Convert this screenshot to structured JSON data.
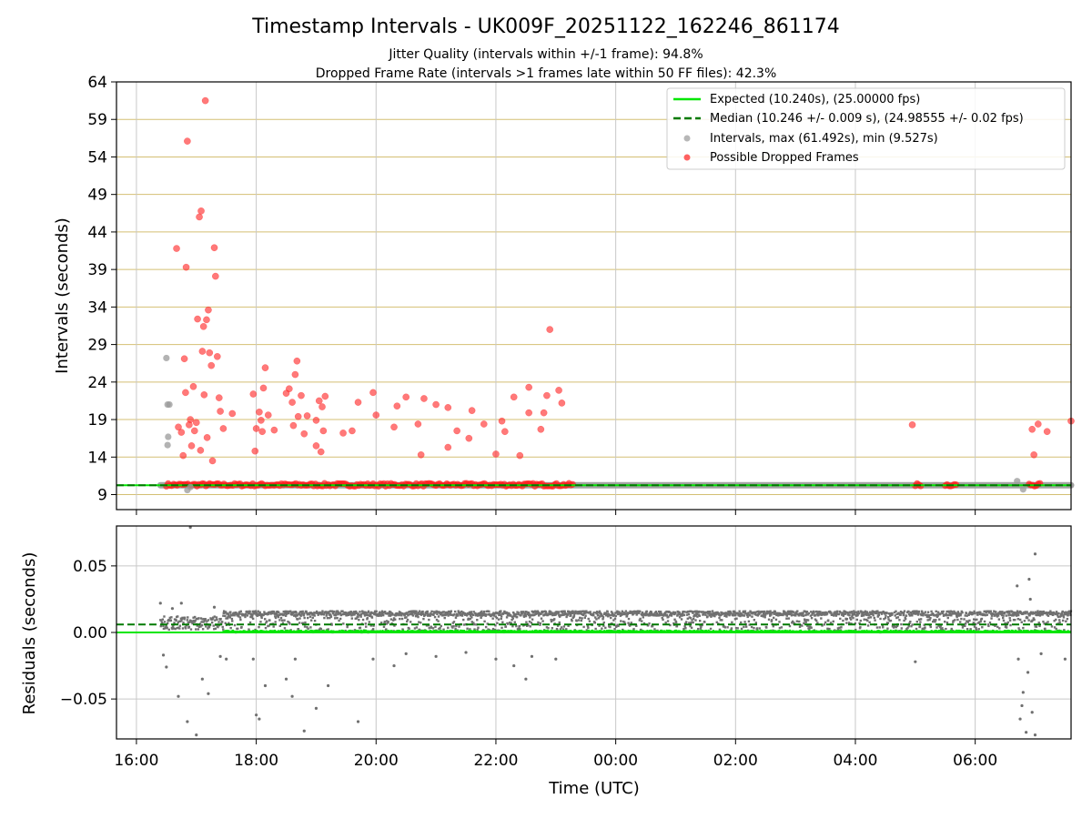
{
  "title": "Timestamp Intervals - UK009F_20251122_162246_861174",
  "subtitle1": "Jitter Quality (intervals within +/-1 frame): 94.8%",
  "subtitle2": "Dropped Frame Rate (intervals >1 frames late within 50 FF files): 42.3%",
  "colors": {
    "expected": "#00e600",
    "median": "#007a00",
    "intervals": "#999999",
    "dropped": "#ff2020",
    "residuals": "#707070",
    "hgrid_top": "#d4bf73",
    "grid": "#c8c8c8"
  },
  "chart_data": [
    {
      "type": "scatter",
      "ylabel": "Intervals (seconds)",
      "ylim": [
        7,
        64
      ],
      "yticks": [
        9,
        14,
        19,
        24,
        29,
        34,
        39,
        44,
        49,
        54,
        59,
        64
      ],
      "ytick_labels": [
        "9",
        "14",
        "19",
        "24",
        "29",
        "34",
        "39",
        "44",
        "49",
        "54",
        "59",
        "64"
      ],
      "grid": true,
      "legend_position": "top-right",
      "legend": [
        "Expected (10.240s), (25.00000 fps)",
        "Median (10.246 +/- 0.009 s), (24.98555 +/- 0.02 fps)",
        "Intervals, max (61.492s), min (9.527s)",
        "Possible Dropped Frames"
      ],
      "expected_interval": 10.24,
      "median_interval": 10.246,
      "baseline_intervals": {
        "y": 10.24,
        "spans": [
          [
            16.4,
            31.6
          ]
        ]
      },
      "dropped_baseline": {
        "y": 10.3,
        "spans": [
          [
            16.5,
            23.3
          ],
          [
            30.9,
            31.1
          ],
          [
            29.0,
            29.1
          ],
          [
            29.5,
            29.7
          ]
        ]
      },
      "intervals_gray": [
        {
          "x": 16.5,
          "y": 27.2
        },
        {
          "x": 16.52,
          "y": 21.0
        },
        {
          "x": 16.55,
          "y": 21.0
        },
        {
          "x": 16.53,
          "y": 16.7
        },
        {
          "x": 16.52,
          "y": 15.6
        },
        {
          "x": 16.9,
          "y": 10.0
        },
        {
          "x": 16.85,
          "y": 9.6
        },
        {
          "x": 30.7,
          "y": 10.8
        },
        {
          "x": 30.8,
          "y": 9.7
        }
      ],
      "dropped": [
        {
          "x": 16.67,
          "y": 41.8
        },
        {
          "x": 16.75,
          "y": 17.3
        },
        {
          "x": 16.8,
          "y": 27.1
        },
        {
          "x": 16.82,
          "y": 22.6
        },
        {
          "x": 16.83,
          "y": 39.3
        },
        {
          "x": 16.85,
          "y": 56.1
        },
        {
          "x": 16.88,
          "y": 18.3
        },
        {
          "x": 16.9,
          "y": 19.0
        },
        {
          "x": 16.92,
          "y": 15.5
        },
        {
          "x": 16.95,
          "y": 23.4
        },
        {
          "x": 16.97,
          "y": 17.5
        },
        {
          "x": 17.0,
          "y": 18.6
        },
        {
          "x": 17.02,
          "y": 32.4
        },
        {
          "x": 17.05,
          "y": 46.0
        },
        {
          "x": 17.08,
          "y": 46.8
        },
        {
          "x": 17.1,
          "y": 28.1
        },
        {
          "x": 17.12,
          "y": 31.4
        },
        {
          "x": 17.13,
          "y": 22.3
        },
        {
          "x": 17.15,
          "y": 61.5
        },
        {
          "x": 17.17,
          "y": 32.3
        },
        {
          "x": 17.2,
          "y": 33.6
        },
        {
          "x": 17.22,
          "y": 27.9
        },
        {
          "x": 17.25,
          "y": 26.2
        },
        {
          "x": 17.3,
          "y": 41.9
        },
        {
          "x": 17.32,
          "y": 38.1
        },
        {
          "x": 17.35,
          "y": 27.4
        },
        {
          "x": 17.27,
          "y": 13.5
        },
        {
          "x": 17.4,
          "y": 20.1
        },
        {
          "x": 17.45,
          "y": 17.8
        },
        {
          "x": 17.6,
          "y": 19.8
        },
        {
          "x": 16.7,
          "y": 18.0
        },
        {
          "x": 16.78,
          "y": 14.2
        },
        {
          "x": 17.07,
          "y": 14.9
        },
        {
          "x": 17.18,
          "y": 16.6
        },
        {
          "x": 17.38,
          "y": 21.9
        },
        {
          "x": 17.95,
          "y": 22.4
        },
        {
          "x": 18.0,
          "y": 17.8
        },
        {
          "x": 18.05,
          "y": 20.0
        },
        {
          "x": 18.1,
          "y": 17.4
        },
        {
          "x": 18.12,
          "y": 23.2
        },
        {
          "x": 18.15,
          "y": 25.9
        },
        {
          "x": 18.2,
          "y": 19.6
        },
        {
          "x": 18.3,
          "y": 17.6
        },
        {
          "x": 17.98,
          "y": 14.8
        },
        {
          "x": 18.08,
          "y": 18.9
        },
        {
          "x": 18.5,
          "y": 22.5
        },
        {
          "x": 18.55,
          "y": 23.1
        },
        {
          "x": 18.6,
          "y": 21.3
        },
        {
          "x": 18.65,
          "y": 25.0
        },
        {
          "x": 18.68,
          "y": 26.8
        },
        {
          "x": 18.7,
          "y": 19.4
        },
        {
          "x": 18.75,
          "y": 22.2
        },
        {
          "x": 18.8,
          "y": 17.1
        },
        {
          "x": 18.85,
          "y": 19.5
        },
        {
          "x": 18.62,
          "y": 18.2
        },
        {
          "x": 19.0,
          "y": 18.9
        },
        {
          "x": 19.05,
          "y": 21.5
        },
        {
          "x": 19.1,
          "y": 20.7
        },
        {
          "x": 19.15,
          "y": 22.1
        },
        {
          "x": 19.12,
          "y": 17.5
        },
        {
          "x": 19.0,
          "y": 15.5
        },
        {
          "x": 19.08,
          "y": 14.7
        },
        {
          "x": 19.45,
          "y": 17.2
        },
        {
          "x": 19.6,
          "y": 17.5
        },
        {
          "x": 19.7,
          "y": 21.3
        },
        {
          "x": 19.95,
          "y": 22.6
        },
        {
          "x": 20.0,
          "y": 19.6
        },
        {
          "x": 20.3,
          "y": 18.0
        },
        {
          "x": 20.35,
          "y": 20.8
        },
        {
          "x": 20.5,
          "y": 22.0
        },
        {
          "x": 20.7,
          "y": 18.4
        },
        {
          "x": 20.75,
          "y": 14.3
        },
        {
          "x": 20.8,
          "y": 21.8
        },
        {
          "x": 21.0,
          "y": 21.0
        },
        {
          "x": 21.2,
          "y": 20.6
        },
        {
          "x": 21.2,
          "y": 15.3
        },
        {
          "x": 21.35,
          "y": 17.5
        },
        {
          "x": 21.55,
          "y": 16.5
        },
        {
          "x": 21.6,
          "y": 20.2
        },
        {
          "x": 21.8,
          "y": 18.4
        },
        {
          "x": 22.0,
          "y": 14.4
        },
        {
          "x": 22.1,
          "y": 18.8
        },
        {
          "x": 22.3,
          "y": 22.0
        },
        {
          "x": 22.55,
          "y": 23.3
        },
        {
          "x": 22.55,
          "y": 19.9
        },
        {
          "x": 22.8,
          "y": 19.9
        },
        {
          "x": 22.85,
          "y": 22.2
        },
        {
          "x": 22.9,
          "y": 31.0
        },
        {
          "x": 23.05,
          "y": 22.9
        },
        {
          "x": 23.1,
          "y": 21.2
        },
        {
          "x": 22.75,
          "y": 17.7
        },
        {
          "x": 22.4,
          "y": 14.2
        },
        {
          "x": 22.15,
          "y": 17.4
        },
        {
          "x": 28.95,
          "y": 18.3
        },
        {
          "x": 31.2,
          "y": 17.4
        },
        {
          "x": 31.6,
          "y": 18.8
        },
        {
          "x": 30.95,
          "y": 17.7
        },
        {
          "x": 31.05,
          "y": 18.4
        },
        {
          "x": 30.98,
          "y": 14.3
        }
      ]
    },
    {
      "type": "scatter",
      "xlabel": "Time (UTC)",
      "ylabel": "Residuals (seconds)",
      "ylim": [
        -0.08,
        0.08
      ],
      "yticks": [
        -0.05,
        0.0,
        0.05
      ],
      "ytick_labels": [
        "−0.05",
        "0.00",
        "0.05"
      ],
      "xlim": [
        15.667,
        31.6
      ],
      "xticks": [
        16,
        18,
        20,
        22,
        24,
        26,
        28,
        30
      ],
      "xtick_labels": [
        "16:00",
        "18:00",
        "20:00",
        "22:00",
        "00:00",
        "02:00",
        "04:00",
        "06:00"
      ],
      "grid": true,
      "expected_residual": 0.0,
      "median_residual": 0.006,
      "dense_band": {
        "x_range": [
          17.45,
          31.6
        ],
        "y_range": [
          0.0,
          0.016
        ]
      },
      "early_band": {
        "x_range": [
          16.4,
          17.45
        ],
        "y_range": [
          0.002,
          0.012
        ]
      },
      "outliers": [
        {
          "x": 16.4,
          "y": 0.022
        },
        {
          "x": 16.45,
          "y": -0.017
        },
        {
          "x": 16.5,
          "y": -0.026
        },
        {
          "x": 16.6,
          "y": 0.018
        },
        {
          "x": 16.7,
          "y": -0.048
        },
        {
          "x": 16.75,
          "y": 0.022
        },
        {
          "x": 16.85,
          "y": -0.067
        },
        {
          "x": 16.9,
          "y": 0.079
        },
        {
          "x": 17.0,
          "y": -0.077
        },
        {
          "x": 17.1,
          "y": -0.035
        },
        {
          "x": 17.2,
          "y": -0.046
        },
        {
          "x": 17.3,
          "y": 0.019
        },
        {
          "x": 17.4,
          "y": -0.018
        },
        {
          "x": 17.5,
          "y": -0.02
        },
        {
          "x": 17.95,
          "y": -0.02
        },
        {
          "x": 18.0,
          "y": -0.062
        },
        {
          "x": 18.05,
          "y": -0.065
        },
        {
          "x": 18.15,
          "y": -0.04
        },
        {
          "x": 18.5,
          "y": -0.035
        },
        {
          "x": 18.6,
          "y": -0.048
        },
        {
          "x": 18.65,
          "y": -0.02
        },
        {
          "x": 18.8,
          "y": -0.074
        },
        {
          "x": 19.0,
          "y": -0.057
        },
        {
          "x": 19.2,
          "y": -0.04
        },
        {
          "x": 19.7,
          "y": -0.067
        },
        {
          "x": 19.95,
          "y": -0.02
        },
        {
          "x": 20.3,
          "y": -0.025
        },
        {
          "x": 20.5,
          "y": -0.016
        },
        {
          "x": 21.0,
          "y": -0.018
        },
        {
          "x": 21.5,
          "y": -0.015
        },
        {
          "x": 22.0,
          "y": -0.02
        },
        {
          "x": 22.3,
          "y": -0.025
        },
        {
          "x": 22.5,
          "y": -0.035
        },
        {
          "x": 22.6,
          "y": -0.018
        },
        {
          "x": 23.0,
          "y": -0.02
        },
        {
          "x": 29.0,
          "y": -0.022
        },
        {
          "x": 31.1,
          "y": -0.016
        },
        {
          "x": 31.5,
          "y": -0.02
        },
        {
          "x": 30.7,
          "y": 0.035
        },
        {
          "x": 30.75,
          "y": -0.065
        },
        {
          "x": 30.8,
          "y": -0.045
        },
        {
          "x": 30.85,
          "y": -0.075
        },
        {
          "x": 30.9,
          "y": 0.04
        },
        {
          "x": 30.95,
          "y": -0.06
        },
        {
          "x": 31.0,
          "y": -0.077
        },
        {
          "x": 31.0,
          "y": 0.059
        },
        {
          "x": 30.88,
          "y": -0.03
        },
        {
          "x": 30.78,
          "y": -0.055
        },
        {
          "x": 30.72,
          "y": -0.02
        },
        {
          "x": 30.92,
          "y": 0.025
        }
      ]
    }
  ]
}
